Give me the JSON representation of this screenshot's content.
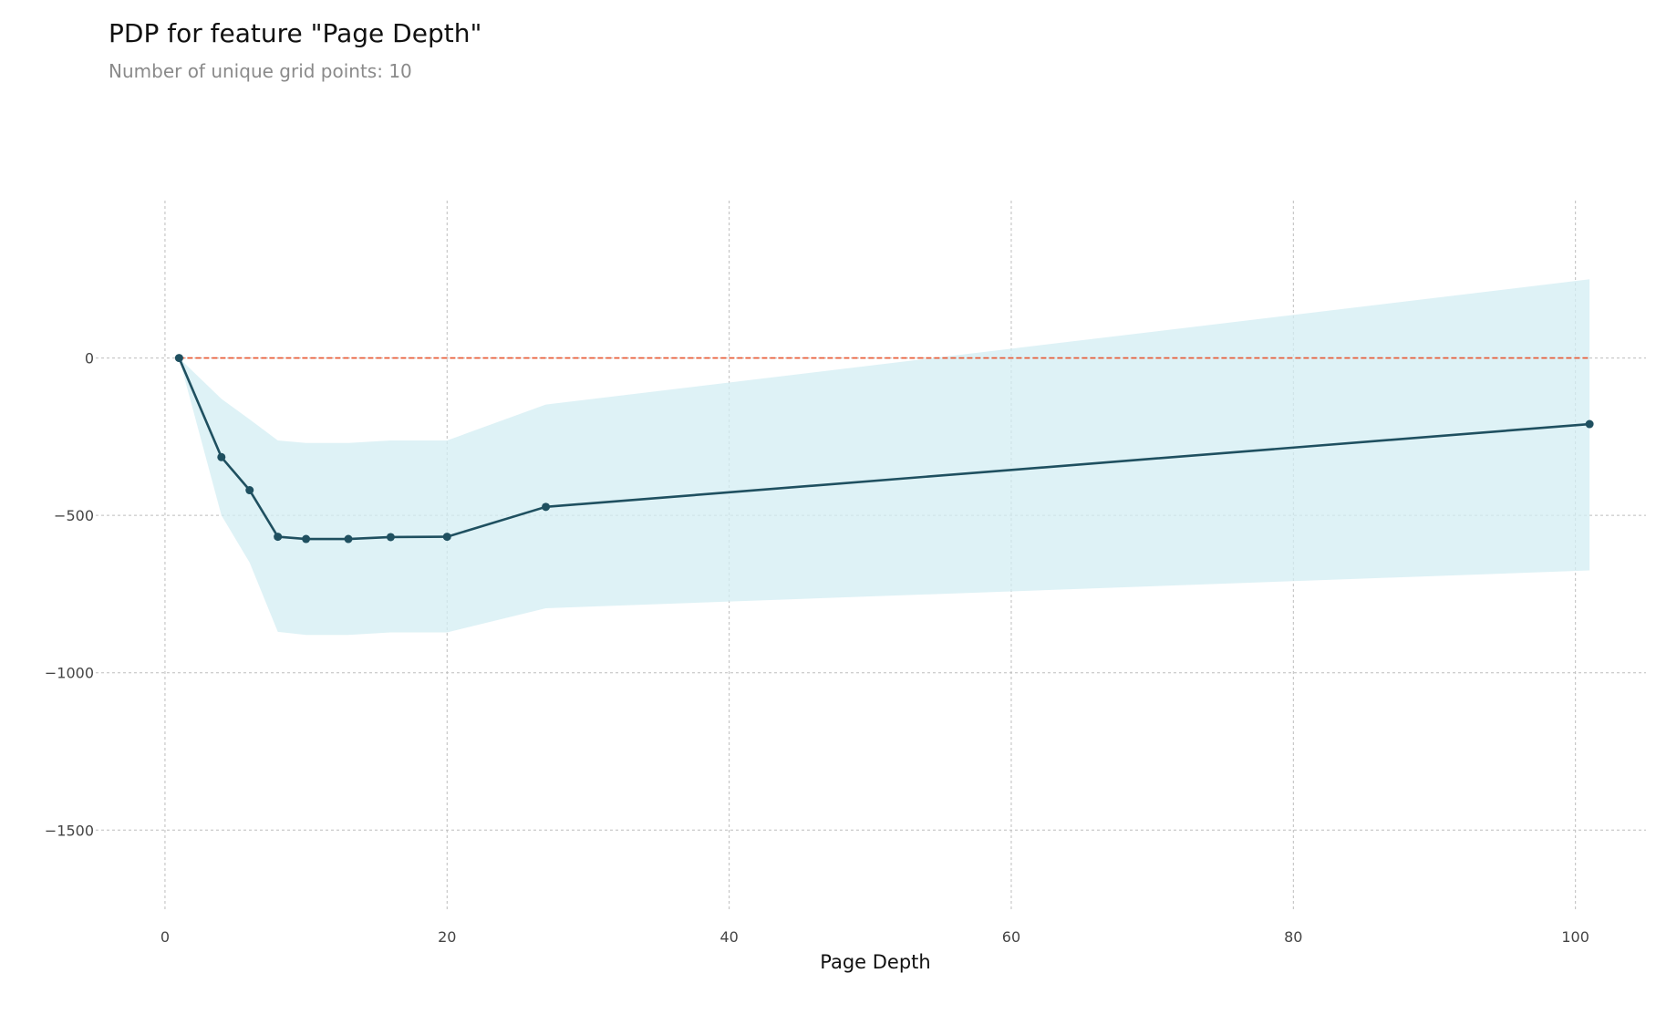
{
  "title": "PDP for feature \"Page Depth\"",
  "subtitle": "Number of unique grid points: 10",
  "colors": {
    "line": "#1f5060",
    "band": "#d3edf3",
    "reference_line": "#e8552f",
    "grid": "#bdbdbd"
  },
  "chart_data": {
    "type": "line",
    "title": "PDP for feature \"Page Depth\"",
    "subtitle": "Number of unique grid points: 10",
    "xlabel": "Page Depth",
    "ylabel": "",
    "xlim": [
      -2,
      105
    ],
    "ylim": [
      -1760,
      500
    ],
    "xticks": [
      0,
      20,
      40,
      60,
      80,
      100
    ],
    "yticks": [
      0,
      -500,
      -1000,
      -1500
    ],
    "grid": true,
    "reference_line_y": 0,
    "x": [
      1,
      4,
      6,
      8,
      10,
      13,
      16,
      20,
      27,
      101
    ],
    "series": [
      {
        "values": [
          0,
          -315,
          -420,
          -568,
          -575,
          -575,
          -569,
          -568,
          -473,
          -210
        ],
        "upper": [
          0,
          -130,
          -195,
          -262,
          -270,
          -270,
          -262,
          -262,
          -148,
          250
        ],
        "lower": [
          0,
          -500,
          -650,
          -870,
          -880,
          -880,
          -872,
          -872,
          -795,
          -675
        ]
      }
    ]
  }
}
